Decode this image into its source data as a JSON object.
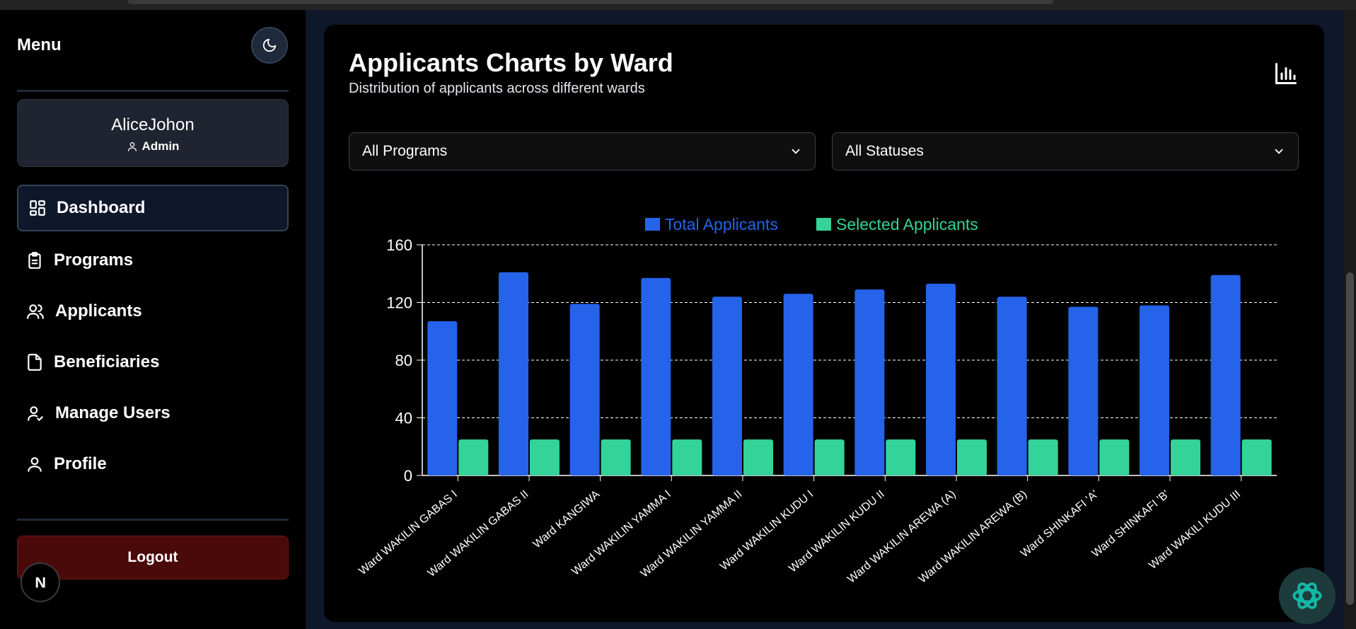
{
  "sidebar": {
    "menu_title": "Menu",
    "theme_toggle_icon": "moon-icon",
    "user": {
      "name": "AliceJohon",
      "role": "Admin"
    },
    "items": [
      {
        "label": "Dashboard",
        "icon": "dashboard-icon",
        "active": true
      },
      {
        "label": "Programs",
        "icon": "clipboard-icon",
        "active": false
      },
      {
        "label": "Applicants",
        "icon": "users-icon",
        "active": false
      },
      {
        "label": "Beneficiaries",
        "icon": "file-icon",
        "active": false
      },
      {
        "label": "Manage Users",
        "icon": "user-check-icon",
        "active": false
      },
      {
        "label": "Profile",
        "icon": "user-icon",
        "active": false
      }
    ],
    "logout_label": "Logout",
    "badge_letter": "N"
  },
  "card": {
    "title": "Applicants Charts by Ward",
    "subtitle": "Distribution of applicants across different wards"
  },
  "filters": {
    "program_selected": "All Programs",
    "status_selected": "All Statuses"
  },
  "colors": {
    "total": "#2563eb",
    "selected": "#34d399"
  },
  "chart_data": {
    "type": "bar",
    "title": "",
    "xlabel": "",
    "ylabel": "",
    "ylim": [
      0,
      160
    ],
    "yticks": [
      0,
      40,
      80,
      120,
      160
    ],
    "categories": [
      "Ward WAKILIN GABAS I",
      "Ward WAKILIN GABAS II",
      "Ward KANGIWA",
      "Ward WAKILIN YAMMA I",
      "Ward WAKILIN YAMMA II",
      "Ward WAKILIN KUDU I",
      "Ward WAKILIN KUDU II",
      "Ward WAKILIN AREWA (A)",
      "Ward WAKILIN AREWA (B)",
      "Ward SHINKAFI 'A'",
      "Ward SHINKAFI 'B'",
      "Ward WAKILI KUDU III"
    ],
    "series": [
      {
        "name": "Total Applicants",
        "values": [
          107,
          141,
          119,
          137,
          124,
          126,
          129,
          133,
          124,
          117,
          118,
          139
        ]
      },
      {
        "name": "Selected Applicants",
        "values": [
          25,
          25,
          25,
          25,
          25,
          25,
          25,
          25,
          25,
          25,
          25,
          25
        ]
      }
    ],
    "legend": "top-center",
    "grid": true
  }
}
